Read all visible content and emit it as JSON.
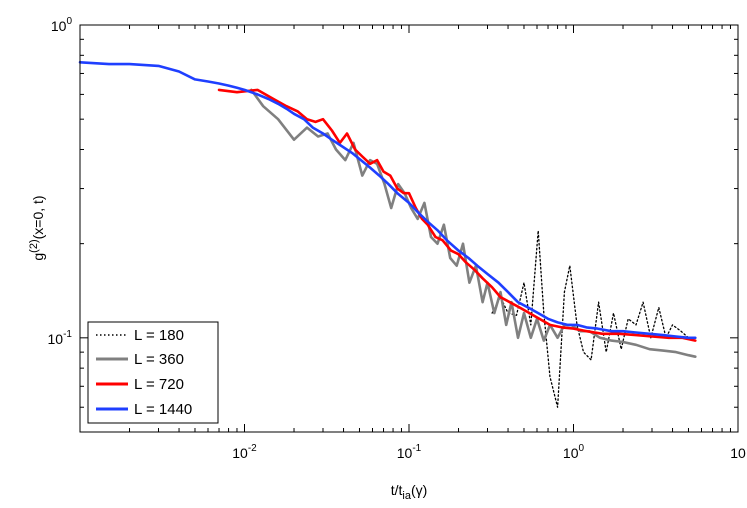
{
  "chart_data": {
    "type": "line",
    "x_scale": "log",
    "y_scale": "log",
    "xlim": [
      0.001,
      10
    ],
    "ylim": [
      0.05,
      1
    ],
    "xlabel": {
      "main": "t/t",
      "sub": "ia",
      "tail": "(γ)"
    },
    "ylabel": {
      "main": "g",
      "sup": "(2)",
      "tail": "(x=0, t)"
    },
    "x_ticks": [
      {
        "value": 0.01,
        "base": "10",
        "exp": "-2"
      },
      {
        "value": 0.1,
        "base": "10",
        "exp": "-1"
      },
      {
        "value": 1,
        "base": "10",
        "exp": "0"
      },
      {
        "value": 10,
        "base": "10",
        "exp": ""
      }
    ],
    "y_ticks": [
      {
        "value": 0.1,
        "base": "10",
        "exp": "-1"
      },
      {
        "value": 1,
        "base": "10",
        "exp": "0"
      }
    ],
    "legend_position": "bottom-left",
    "series": [
      {
        "name": "L = 180",
        "color": "#000000",
        "style": "dotted",
        "x": [
          0.32,
          0.36,
          0.4,
          0.45,
          0.5,
          0.55,
          0.61,
          0.66,
          0.72,
          0.8,
          0.88,
          0.95,
          1.05,
          1.15,
          1.28,
          1.42,
          1.58,
          1.75,
          1.95,
          2.15,
          2.4,
          2.65,
          2.95,
          3.3,
          3.65,
          4.0,
          4.5,
          5.0,
          5.5
        ],
        "y": [
          0.12,
          0.135,
          0.12,
          0.118,
          0.15,
          0.11,
          0.22,
          0.12,
          0.075,
          0.06,
          0.14,
          0.17,
          0.11,
          0.09,
          0.085,
          0.13,
          0.09,
          0.12,
          0.092,
          0.115,
          0.11,
          0.13,
          0.1,
          0.125,
          0.1,
          0.11,
          0.105,
          0.1,
          0.098
        ]
      },
      {
        "name": "L = 360",
        "color": "#808080",
        "style": "solid",
        "x": [
          0.011,
          0.013,
          0.016,
          0.02,
          0.024,
          0.028,
          0.032,
          0.036,
          0.041,
          0.046,
          0.052,
          0.058,
          0.064,
          0.071,
          0.078,
          0.086,
          0.094,
          0.103,
          0.113,
          0.124,
          0.136,
          0.149,
          0.163,
          0.178,
          0.195,
          0.213,
          0.233,
          0.255,
          0.28,
          0.3,
          0.33,
          0.36,
          0.39,
          0.42,
          0.46,
          0.5,
          0.55,
          0.6,
          0.66,
          0.72,
          0.8,
          0.88,
          0.97,
          1.1,
          1.25,
          1.45,
          1.7,
          2.0,
          2.4,
          2.9,
          3.5,
          4.2,
          5.0,
          5.5
        ],
        "y": [
          0.62,
          0.55,
          0.5,
          0.43,
          0.47,
          0.44,
          0.45,
          0.4,
          0.37,
          0.42,
          0.33,
          0.37,
          0.36,
          0.31,
          0.26,
          0.31,
          0.29,
          0.26,
          0.24,
          0.27,
          0.21,
          0.2,
          0.23,
          0.18,
          0.17,
          0.2,
          0.15,
          0.17,
          0.13,
          0.15,
          0.12,
          0.14,
          0.11,
          0.13,
          0.1,
          0.12,
          0.1,
          0.115,
          0.098,
          0.11,
          0.1,
          0.11,
          0.11,
          0.105,
          0.105,
          0.1,
          0.098,
          0.097,
          0.095,
          0.092,
          0.091,
          0.09,
          0.088,
          0.087
        ]
      },
      {
        "name": "L = 720",
        "color": "#ff0000",
        "style": "solid",
        "x": [
          0.007,
          0.009,
          0.012,
          0.015,
          0.018,
          0.021,
          0.024,
          0.027,
          0.03,
          0.034,
          0.038,
          0.042,
          0.047,
          0.052,
          0.058,
          0.064,
          0.07,
          0.077,
          0.085,
          0.093,
          0.1,
          0.11,
          0.12,
          0.13,
          0.145,
          0.16,
          0.18,
          0.2,
          0.22,
          0.25,
          0.28,
          0.32,
          0.36,
          0.41,
          0.47,
          0.54,
          0.62,
          0.72,
          0.85,
          1.0,
          1.2,
          1.5,
          1.9,
          2.4,
          3.0,
          3.8,
          4.6,
          5.5
        ],
        "y": [
          0.62,
          0.61,
          0.62,
          0.58,
          0.55,
          0.53,
          0.5,
          0.49,
          0.5,
          0.46,
          0.42,
          0.45,
          0.4,
          0.38,
          0.36,
          0.37,
          0.34,
          0.33,
          0.3,
          0.29,
          0.29,
          0.26,
          0.24,
          0.23,
          0.21,
          0.205,
          0.19,
          0.185,
          0.175,
          0.165,
          0.155,
          0.145,
          0.135,
          0.13,
          0.125,
          0.12,
          0.115,
          0.11,
          0.108,
          0.107,
          0.105,
          0.103,
          0.103,
          0.102,
          0.101,
          0.1,
          0.1,
          0.098
        ]
      },
      {
        "name": "L = 1440",
        "color": "#1f3fff",
        "style": "solid",
        "x": [
          0.001,
          0.0015,
          0.002,
          0.003,
          0.004,
          0.005,
          0.006,
          0.007,
          0.008,
          0.009,
          0.01,
          0.012,
          0.014,
          0.016,
          0.018,
          0.02,
          0.023,
          0.026,
          0.03,
          0.034,
          0.039,
          0.045,
          0.051,
          0.058,
          0.066,
          0.075,
          0.085,
          0.1,
          0.115,
          0.13,
          0.15,
          0.17,
          0.2,
          0.23,
          0.26,
          0.3,
          0.35,
          0.4,
          0.46,
          0.53,
          0.61,
          0.7,
          0.8,
          0.92,
          1.05,
          1.2,
          1.4,
          1.7,
          2.0,
          2.4,
          2.9,
          3.5,
          4.2,
          5.0,
          5.5
        ],
        "y": [
          0.76,
          0.75,
          0.75,
          0.74,
          0.71,
          0.67,
          0.66,
          0.65,
          0.64,
          0.63,
          0.62,
          0.6,
          0.58,
          0.56,
          0.54,
          0.52,
          0.5,
          0.47,
          0.45,
          0.43,
          0.41,
          0.39,
          0.37,
          0.35,
          0.33,
          0.31,
          0.29,
          0.27,
          0.25,
          0.235,
          0.22,
          0.205,
          0.19,
          0.18,
          0.17,
          0.16,
          0.15,
          0.14,
          0.13,
          0.125,
          0.12,
          0.115,
          0.112,
          0.11,
          0.11,
          0.108,
          0.107,
          0.105,
          0.105,
          0.104,
          0.103,
          0.102,
          0.101,
          0.1,
          0.1
        ]
      }
    ]
  }
}
